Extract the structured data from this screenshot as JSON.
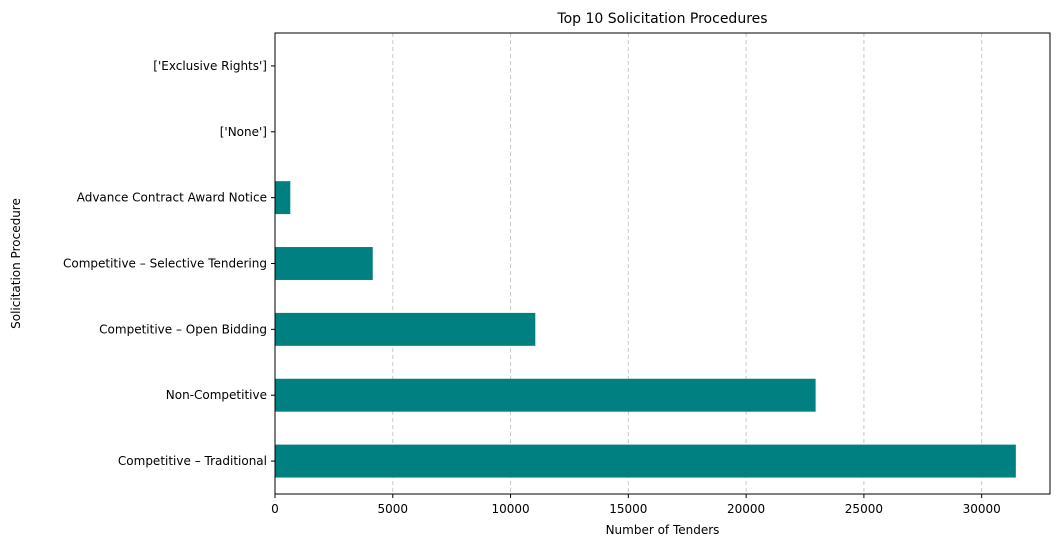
{
  "chart_data": {
    "type": "bar",
    "orientation": "horizontal",
    "title": "Top 10 Solicitation Procedures",
    "xlabel": "Number of Tenders",
    "ylabel": "Solicitation Procedure",
    "categories": [
      "Competitive – Traditional",
      "Non-Competitive",
      "Competitive – Open Bidding",
      "Competitive – Selective Tendering",
      "Advance Contract Award Notice",
      "['None']",
      "['Exclusive Rights']"
    ],
    "values": [
      31450,
      22950,
      11050,
      4150,
      650,
      5,
      3
    ],
    "xlim": [
      0,
      32900
    ],
    "xticks": [
      0,
      5000,
      10000,
      15000,
      20000,
      25000,
      30000
    ],
    "xtick_labels": [
      "0",
      "5000",
      "10000",
      "15000",
      "20000",
      "25000",
      "30000"
    ],
    "grid": "x-dashed",
    "bar_color": "#008080"
  }
}
